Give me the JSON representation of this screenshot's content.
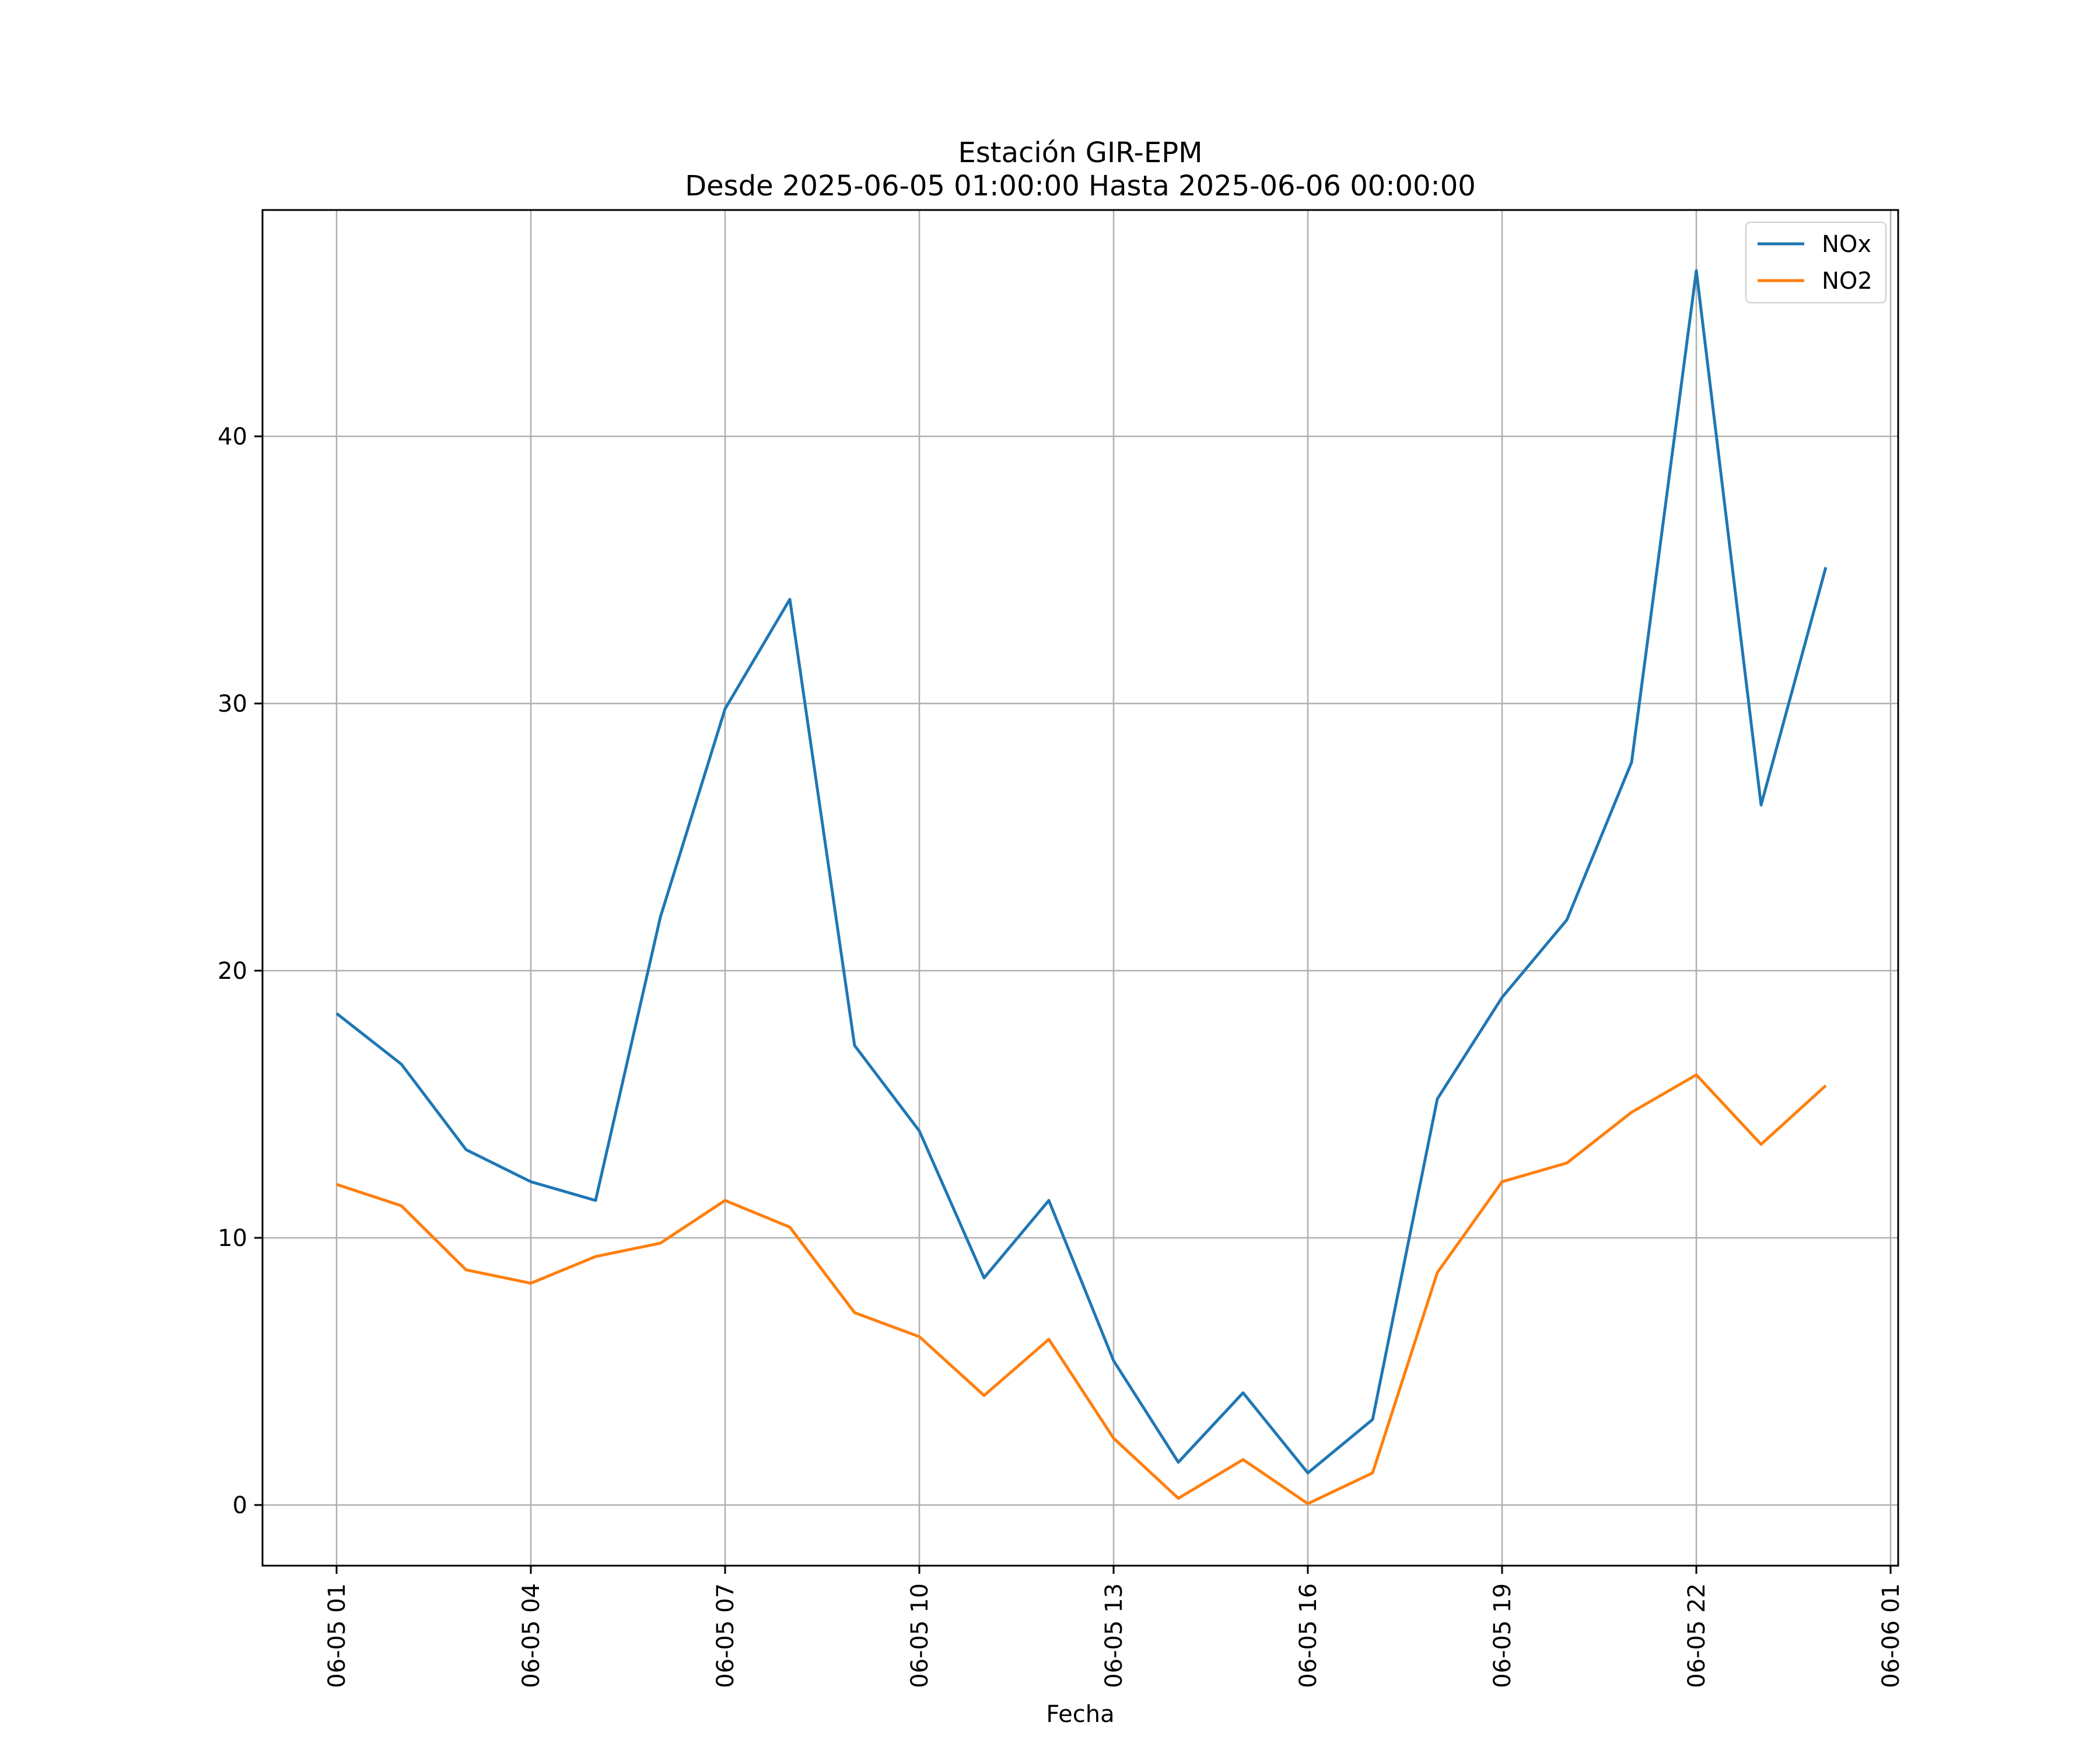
{
  "chart_data": {
    "type": "line",
    "title": "Estación GIR-EPM",
    "subtitle": "Desde 2025-06-05 01:00:00 Hasta 2025-06-06 00:00:00",
    "xlabel": "Fecha",
    "ylabel": "",
    "x": [
      "06-05 01",
      "06-05 02",
      "06-05 03",
      "06-05 04",
      "06-05 05",
      "06-05 06",
      "06-05 07",
      "06-05 08",
      "06-05 09",
      "06-05 10",
      "06-05 11",
      "06-05 12",
      "06-05 13",
      "06-05 14",
      "06-05 15",
      "06-05 16",
      "06-05 17",
      "06-05 18",
      "06-05 19",
      "06-05 20",
      "06-05 21",
      "06-05 22",
      "06-05 23",
      "06-06 00"
    ],
    "x_tick_labels": [
      "06-05 01",
      "06-05 04",
      "06-05 07",
      "06-05 10",
      "06-05 13",
      "06-05 16",
      "06-05 19",
      "06-05 22",
      "06-06 01"
    ],
    "x_range": [
      "06-05 01",
      "06-06 01"
    ],
    "y_ticks": [
      0,
      10,
      20,
      30,
      40
    ],
    "ylim": [
      -2.3,
      48.4
    ],
    "grid": true,
    "legend_position": "top-right",
    "series": [
      {
        "name": "NOx",
        "color": "#1f77b4",
        "values": [
          18.4,
          16.5,
          13.3,
          12.1,
          11.4,
          22.0,
          29.8,
          33.9,
          17.2,
          14.0,
          8.5,
          11.4,
          5.4,
          1.6,
          4.2,
          1.2,
          3.2,
          15.2,
          19.0,
          21.9,
          27.8,
          46.2,
          26.2,
          35.1
        ]
      },
      {
        "name": "NO2",
        "color": "#ff7f0e",
        "values": [
          12.0,
          11.2,
          8.8,
          8.3,
          9.3,
          9.8,
          11.4,
          10.4,
          7.2,
          6.3,
          4.1,
          6.2,
          2.5,
          0.25,
          1.7,
          0.05,
          1.2,
          8.7,
          12.1,
          12.8,
          14.7,
          16.1,
          13.5,
          15.7
        ]
      }
    ]
  }
}
